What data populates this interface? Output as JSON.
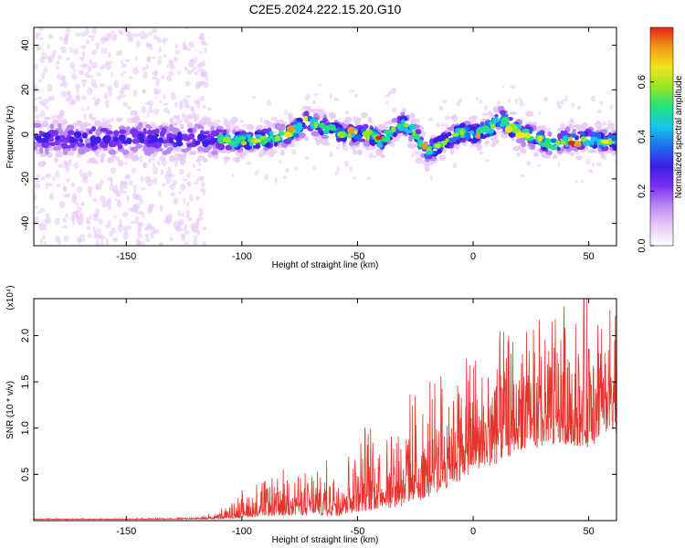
{
  "title": "C2E5.2024.222.15.20.G10",
  "colors": {
    "snr_line": "#e8322c",
    "colormap": [
      "#ffffff",
      "#e9c9f7",
      "#b98af2",
      "#7b2ff0",
      "#3a1fe6",
      "#1f6ff0",
      "#18c6e8",
      "#23e37a",
      "#96e626",
      "#f0e51e",
      "#f09a18",
      "#e8201a"
    ]
  },
  "chart_data": [
    {
      "type": "heatmap",
      "name": "spectrogram",
      "xlabel": "Height of straight line (km)",
      "ylabel": "Frequency (Hz)",
      "xlim": [
        -190,
        62
      ],
      "ylim": [
        -50,
        48
      ],
      "x_ticks": [
        -150,
        -100,
        -50,
        0,
        50
      ],
      "y_ticks": [
        -40,
        -20,
        0,
        20,
        40
      ],
      "colorbar": {
        "label": "Normalized spectral amplitude",
        "range": [
          0,
          0.8
        ],
        "ticks": [
          "0.0",
          "0.2",
          "0.4",
          "0.6"
        ]
      },
      "ridge": {
        "x": [
          -110,
          -100,
          -90,
          -80,
          -72,
          -65,
          -55,
          -45,
          -40,
          -35,
          -30,
          -25,
          -20,
          -15,
          -10,
          -5,
          0,
          5,
          8,
          12,
          15,
          20,
          25,
          30,
          35,
          40,
          45,
          50,
          55,
          60
        ],
        "freq": [
          -2,
          -3,
          -2,
          0,
          6,
          3,
          0,
          0,
          -3,
          2,
          5,
          0,
          -8,
          -5,
          -2,
          1,
          0,
          2,
          3,
          7,
          4,
          1,
          -1,
          -3,
          -5,
          -2,
          -3,
          -2,
          -3,
          -3
        ]
      }
    },
    {
      "type": "line",
      "name": "snr",
      "xlabel": "Height of straight line (km)",
      "ylabel": "SNR (10 * v/v)",
      "multiplier_label": "(x10⁴)",
      "xlim": [
        -190,
        62
      ],
      "ylim": [
        0,
        24000
      ],
      "x_ticks": [
        -150,
        -100,
        -50,
        0,
        50
      ],
      "y_ticks": [
        "0.5",
        "1.0",
        "1.5",
        "2.0"
      ],
      "series": [
        {
          "x": [
            -190,
            -150,
            -120,
            -110,
            -100,
            -90,
            -80,
            -70,
            -60,
            -50,
            -40,
            -30,
            -20,
            -10,
            0,
            10,
            20,
            30,
            40,
            50,
            60
          ],
          "baseline": [
            150,
            150,
            200,
            300,
            800,
            1200,
            1400,
            1400,
            1500,
            2500,
            3000,
            3500,
            4500,
            6000,
            7500,
            8500,
            10000,
            10500,
            11000,
            11000,
            12000
          ],
          "amplitude": [
            50,
            50,
            100,
            400,
            1500,
            2200,
            2500,
            2500,
            3000,
            4500,
            5000,
            5500,
            6000,
            6500,
            6500,
            7000,
            7000,
            7500,
            8000,
            9000,
            7000
          ]
        }
      ]
    }
  ]
}
